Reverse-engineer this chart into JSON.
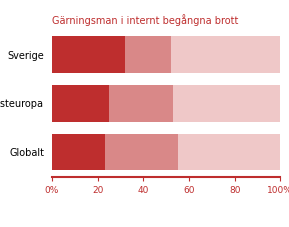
{
  "title": "Gärningsman i internt begångna brott",
  "categories": [
    "Sverige",
    "Västeuropa",
    "Globalt"
  ],
  "series": {
    "Ingår i företagsledningen": [
      32,
      25,
      23
    ],
    "Mellanchefer": [
      20,
      28,
      32
    ],
    "Övriga anställda": [
      48,
      47,
      45
    ]
  },
  "colors": {
    "Ingår i företagsledningen": "#be2e2e",
    "Mellanchefer": "#d98888",
    "Övriga anställda": "#efc8c8"
  },
  "xlim": [
    0,
    100
  ],
  "xticks": [
    0,
    20,
    40,
    60,
    80,
    100
  ],
  "xticklabels": [
    "0%",
    "20",
    "40",
    "60",
    "80",
    "100%"
  ],
  "title_color": "#be2e2e",
  "title_fontsize": 7,
  "axis_color": "#be2e2e",
  "label_fontsize": 7,
  "tick_fontsize": 6.5,
  "legend_fontsize": 6,
  "bar_height": 0.75,
  "background_color": "#ffffff"
}
